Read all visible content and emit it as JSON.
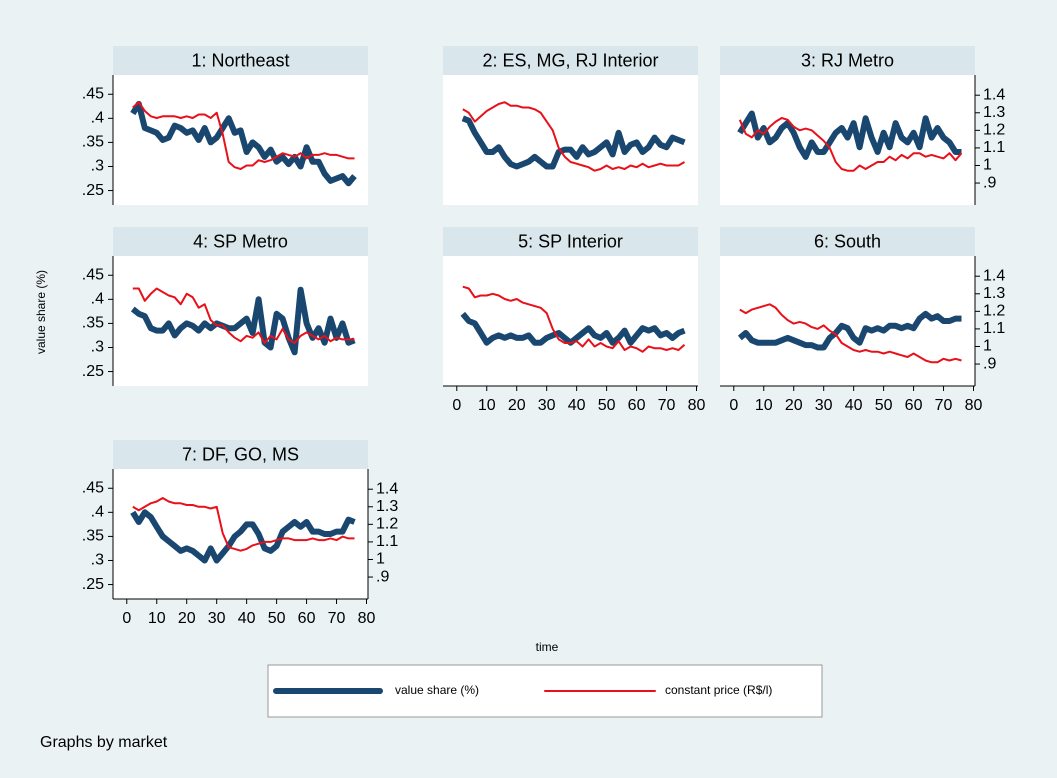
{
  "chart_data": {
    "type": "line",
    "ylabel": "value share (%)",
    "xlabel": "time",
    "note": "Graphs by market",
    "xlim": [
      -4.6,
      80.5
    ],
    "xticks": [
      0,
      10,
      20,
      30,
      40,
      50,
      60,
      70,
      80
    ],
    "ylim": [
      0.22,
      0.49
    ],
    "yticks": [
      {
        "value": 0.25,
        "label": ".25"
      },
      {
        "value": 0.3,
        "label": ".3"
      },
      {
        "value": 0.35,
        "label": ".35"
      },
      {
        "value": 0.4,
        "label": ".4"
      },
      {
        "value": 0.45,
        "label": ".45"
      }
    ],
    "y2lim": [
      0.775,
      1.515
    ],
    "y2ticks": [
      {
        "value": 0.9,
        "label": ".9"
      },
      1,
      1.1,
      1.2,
      1.3,
      1.4
    ],
    "legend": [
      {
        "name": "value share (%)",
        "color": "#1a476f"
      },
      {
        "name": "constant price (R$/l)",
        "color": "#e8111a"
      }
    ],
    "x": [
      2,
      4,
      6,
      8,
      10,
      12,
      14,
      16,
      18,
      20,
      22,
      24,
      26,
      28,
      30,
      32,
      34,
      36,
      38,
      40,
      42,
      44,
      46,
      48,
      50,
      52,
      54,
      56,
      58,
      60,
      62,
      64,
      66,
      68,
      70,
      72,
      74,
      76
    ],
    "panels": [
      {
        "title": "1: Northeast",
        "series": [
          {
            "values": [
              0.41,
              0.43,
              0.38,
              0.375,
              0.37,
              0.355,
              0.36,
              0.385,
              0.38,
              0.37,
              0.375,
              0.355,
              0.38,
              0.35,
              0.36,
              0.38,
              0.4,
              0.37,
              0.375,
              0.33,
              0.35,
              0.34,
              0.32,
              0.335,
              0.31,
              0.32,
              0.305,
              0.32,
              0.3,
              0.34,
              0.31,
              0.31,
              0.285,
              0.27,
              0.275,
              0.28,
              0.265,
              0.28
            ]
          },
          {
            "values": [
              1.33,
              1.36,
              1.31,
              1.28,
              1.27,
              1.28,
              1.28,
              1.28,
              1.27,
              1.28,
              1.27,
              1.29,
              1.29,
              1.27,
              1.3,
              1.18,
              1.02,
              0.99,
              0.98,
              1.0,
              1.0,
              1.03,
              1.02,
              1.03,
              1.05,
              1.07,
              1.06,
              1.05,
              1.07,
              1.04,
              1.06,
              1.06,
              1.07,
              1.06,
              1.06,
              1.05,
              1.04,
              1.04
            ],
            "axis": "y2"
          }
        ]
      },
      {
        "title": "2: ES, MG, RJ Interior",
        "series": [
          {
            "values": [
              0.4,
              0.395,
              0.37,
              0.35,
              0.33,
              0.33,
              0.34,
              0.32,
              0.305,
              0.3,
              0.305,
              0.31,
              0.32,
              0.31,
              0.3,
              0.3,
              0.33,
              0.335,
              0.335,
              0.32,
              0.34,
              0.325,
              0.33,
              0.34,
              0.35,
              0.325,
              0.37,
              0.33,
              0.345,
              0.35,
              0.33,
              0.34,
              0.36,
              0.345,
              0.34,
              0.36,
              0.355,
              0.35
            ]
          },
          {
            "values": [
              1.32,
              1.3,
              1.25,
              1.28,
              1.31,
              1.33,
              1.35,
              1.36,
              1.34,
              1.34,
              1.33,
              1.33,
              1.32,
              1.3,
              1.25,
              1.2,
              1.1,
              1.05,
              1.02,
              1.01,
              1.0,
              0.99,
              0.97,
              0.98,
              1.0,
              0.98,
              0.99,
              0.98,
              1.0,
              0.99,
              1.01,
              0.99,
              1.0,
              1.01,
              1.0,
              1.0,
              1.0,
              1.02
            ],
            "axis": "y2"
          }
        ]
      },
      {
        "title": "3: RJ Metro",
        "series": [
          {
            "values": [
              0.37,
              0.39,
              0.41,
              0.36,
              0.38,
              0.35,
              0.36,
              0.38,
              0.39,
              0.37,
              0.34,
              0.32,
              0.35,
              0.33,
              0.33,
              0.35,
              0.37,
              0.38,
              0.36,
              0.39,
              0.34,
              0.4,
              0.36,
              0.33,
              0.37,
              0.34,
              0.39,
              0.36,
              0.35,
              0.37,
              0.34,
              0.4,
              0.36,
              0.38,
              0.36,
              0.35,
              0.33,
              0.33
            ]
          },
          {
            "values": [
              1.26,
              1.18,
              1.16,
              1.2,
              1.18,
              1.22,
              1.25,
              1.27,
              1.26,
              1.22,
              1.2,
              1.21,
              1.2,
              1.17,
              1.14,
              1.1,
              1.02,
              0.98,
              0.97,
              0.97,
              1.0,
              0.98,
              1.0,
              1.02,
              1.02,
              1.05,
              1.03,
              1.06,
              1.04,
              1.07,
              1.07,
              1.05,
              1.06,
              1.05,
              1.04,
              1.07,
              1.03,
              1.07
            ],
            "axis": "y2"
          }
        ]
      },
      {
        "title": "4: SP Metro",
        "series": [
          {
            "values": [
              0.38,
              0.37,
              0.365,
              0.34,
              0.335,
              0.335,
              0.35,
              0.325,
              0.34,
              0.35,
              0.345,
              0.335,
              0.35,
              0.34,
              0.35,
              0.345,
              0.34,
              0.34,
              0.35,
              0.36,
              0.33,
              0.4,
              0.31,
              0.3,
              0.37,
              0.36,
              0.32,
              0.29,
              0.42,
              0.35,
              0.32,
              0.34,
              0.31,
              0.36,
              0.32,
              0.35,
              0.31,
              0.315
            ]
          },
          {
            "values": [
              1.33,
              1.33,
              1.26,
              1.3,
              1.33,
              1.31,
              1.29,
              1.28,
              1.24,
              1.3,
              1.28,
              1.22,
              1.24,
              1.15,
              1.12,
              1.12,
              1.08,
              1.05,
              1.03,
              1.06,
              1.05,
              1.08,
              1.02,
              1.06,
              1.04,
              1.1,
              1.04,
              1.02,
              1.06,
              1.08,
              1.06,
              1.04,
              1.06,
              1.03,
              1.05,
              1.04,
              1.04,
              1.04
            ],
            "axis": "y2"
          }
        ]
      },
      {
        "title": "5: SP Interior",
        "series": [
          {
            "values": [
              0.37,
              0.355,
              0.35,
              0.33,
              0.31,
              0.32,
              0.325,
              0.32,
              0.325,
              0.32,
              0.32,
              0.325,
              0.31,
              0.31,
              0.32,
              0.325,
              0.33,
              0.32,
              0.31,
              0.32,
              0.33,
              0.34,
              0.325,
              0.32,
              0.33,
              0.31,
              0.32,
              0.335,
              0.31,
              0.325,
              0.34,
              0.335,
              0.34,
              0.325,
              0.33,
              0.32,
              0.33,
              0.335
            ]
          },
          {
            "values": [
              1.34,
              1.33,
              1.28,
              1.29,
              1.29,
              1.3,
              1.29,
              1.27,
              1.26,
              1.27,
              1.25,
              1.24,
              1.23,
              1.22,
              1.19,
              1.1,
              1.04,
              1.02,
              1.02,
              1.03,
              1.0,
              1.04,
              1.0,
              1.02,
              1.0,
              0.99,
              1.03,
              0.98,
              1.0,
              0.99,
              0.97,
              1.0,
              0.99,
              0.99,
              0.98,
              0.99,
              0.98,
              1.01
            ],
            "axis": "y2"
          }
        ]
      },
      {
        "title": "6: South",
        "series": [
          {
            "values": [
              0.32,
              0.33,
              0.315,
              0.31,
              0.31,
              0.31,
              0.31,
              0.315,
              0.32,
              0.315,
              0.31,
              0.305,
              0.305,
              0.3,
              0.3,
              0.32,
              0.33,
              0.345,
              0.34,
              0.32,
              0.31,
              0.34,
              0.335,
              0.34,
              0.335,
              0.345,
              0.345,
              0.34,
              0.345,
              0.34,
              0.36,
              0.37,
              0.36,
              0.365,
              0.355,
              0.355,
              0.36,
              0.36
            ]
          },
          {
            "values": [
              1.21,
              1.19,
              1.21,
              1.22,
              1.23,
              1.24,
              1.22,
              1.18,
              1.15,
              1.13,
              1.14,
              1.13,
              1.11,
              1.1,
              1.12,
              1.09,
              1.07,
              1.02,
              1.0,
              0.98,
              0.97,
              0.98,
              0.97,
              0.97,
              0.96,
              0.97,
              0.96,
              0.95,
              0.94,
              0.96,
              0.94,
              0.92,
              0.91,
              0.91,
              0.93,
              0.92,
              0.93,
              0.92
            ],
            "axis": "y2"
          }
        ]
      },
      {
        "title": "7: DF, GO, MS",
        "series": [
          {
            "values": [
              0.4,
              0.38,
              0.4,
              0.39,
              0.37,
              0.35,
              0.34,
              0.33,
              0.32,
              0.325,
              0.32,
              0.31,
              0.3,
              0.325,
              0.3,
              0.315,
              0.33,
              0.35,
              0.36,
              0.375,
              0.375,
              0.355,
              0.325,
              0.32,
              0.33,
              0.36,
              0.37,
              0.38,
              0.37,
              0.38,
              0.36,
              0.36,
              0.355,
              0.355,
              0.36,
              0.36,
              0.385,
              0.38
            ]
          },
          {
            "values": [
              1.3,
              1.28,
              1.3,
              1.32,
              1.33,
              1.35,
              1.33,
              1.32,
              1.32,
              1.31,
              1.31,
              1.3,
              1.3,
              1.29,
              1.3,
              1.15,
              1.07,
              1.06,
              1.05,
              1.06,
              1.08,
              1.09,
              1.1,
              1.1,
              1.11,
              1.12,
              1.12,
              1.11,
              1.11,
              1.11,
              1.12,
              1.11,
              1.11,
              1.12,
              1.11,
              1.13,
              1.12,
              1.12
            ],
            "axis": "y2"
          }
        ]
      }
    ]
  }
}
